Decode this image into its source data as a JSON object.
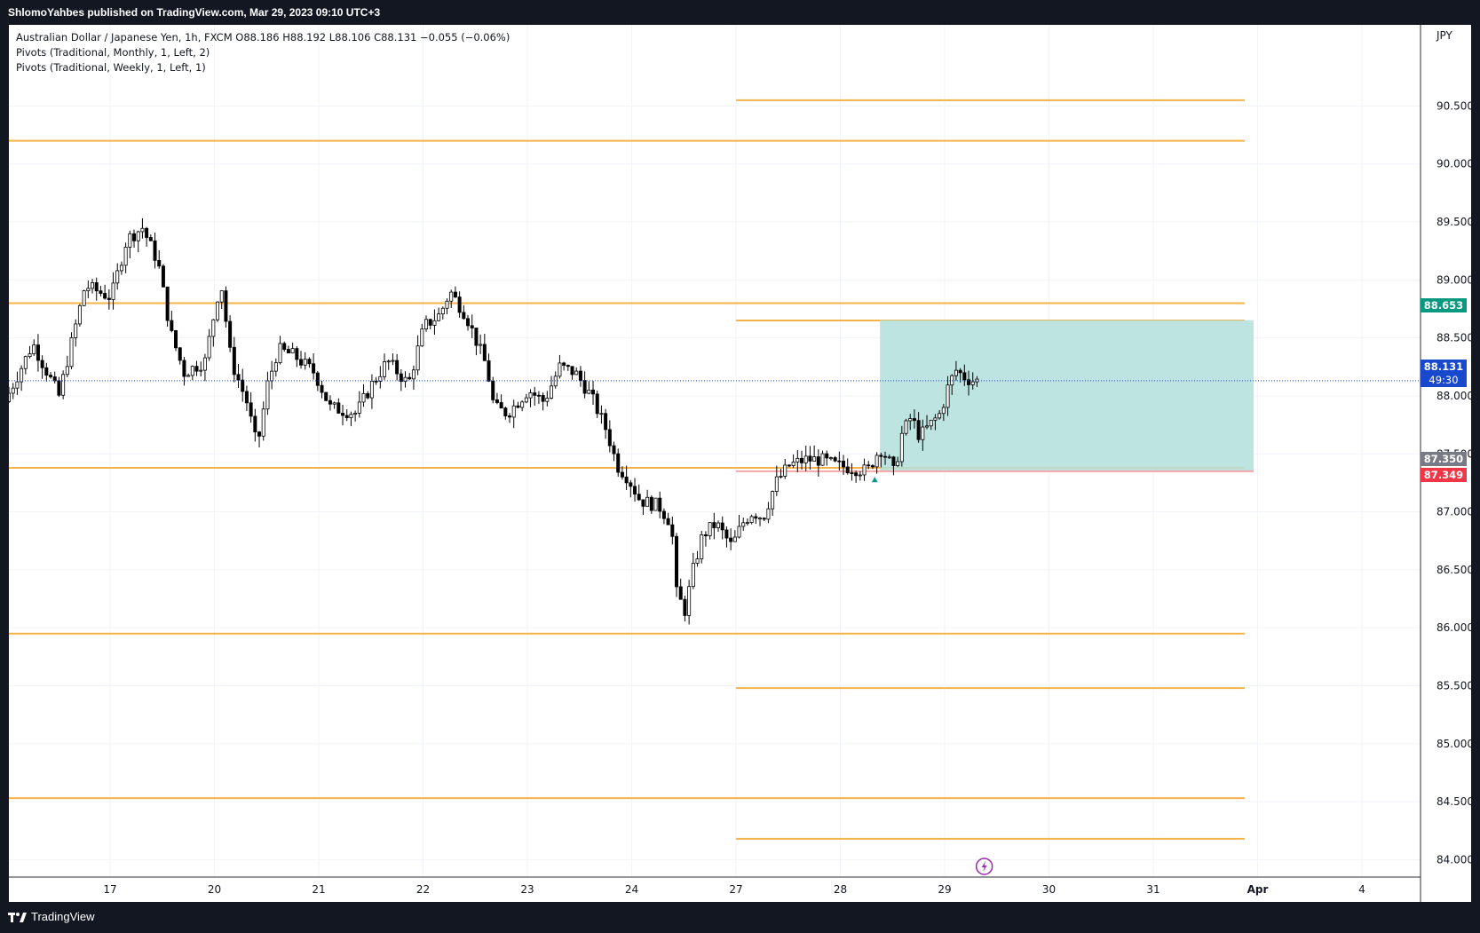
{
  "header": {
    "published": "ShlomoYahbes published on TradingView.com, Mar 29, 2023 09:10 UTC+3"
  },
  "legend": {
    "symbol_line": "Australian Dollar / Japanese Yen, 1h, FXCM  O88.186  H88.192  L88.106  C88.131  −0.055 (−0.06%)",
    "pivots_monthly": "Pivots (Traditional, Monthly, 1, Left, 2)",
    "pivots_weekly": "Pivots (Traditional, Weekly, 1, Left, 1)"
  },
  "axis": {
    "currency": "JPY"
  },
  "price_tags": {
    "target": "88.653",
    "last": "88.131",
    "countdown": "49:30",
    "entry": "87.350",
    "stop": "87.349"
  },
  "footer": {
    "brand": "TradingView"
  },
  "colors": {
    "pivot_line": "#f7b347",
    "long_zone": "#b2dfdb",
    "target_tag": "#089981",
    "last_price_tag": "#1848cc",
    "stop_tag": "#f23645",
    "entry_tag": "#787b86",
    "candle_up": "#ffffff",
    "candle_down": "#000000"
  },
  "chart_data": {
    "type": "candlestick",
    "symbol": "AUDJPY",
    "timeframe": "1h",
    "ylim": [
      83.85,
      91.2
    ],
    "y_ticks": [
      "84.000",
      "84.500",
      "85.000",
      "85.500",
      "86.000",
      "86.500",
      "87.000",
      "87.500",
      "88.000",
      "88.500",
      "89.000",
      "89.500",
      "90.000",
      "90.500"
    ],
    "x_ticks": [
      "17",
      "20",
      "21",
      "22",
      "23",
      "24",
      "27",
      "28",
      "29",
      "30",
      "31",
      "Apr",
      "4"
    ],
    "x_tick_slots": [
      0,
      1,
      2,
      3,
      4,
      5,
      6,
      7,
      8,
      9,
      10,
      11,
      12
    ],
    "monthly_pivots": [
      90.2,
      88.8,
      87.38,
      85.95,
      84.53
    ],
    "weekly_pivots": [
      90.55,
      88.65,
      87.38,
      85.48,
      84.18
    ],
    "position": {
      "type": "long",
      "entry": 87.35,
      "target": 88.653,
      "stop": 87.349,
      "start_slot": 7.38
    },
    "last_price": 88.131,
    "anchors": [
      [
        -0.97,
        87.95
      ],
      [
        -0.7,
        88.45
      ],
      [
        -0.45,
        88.0
      ],
      [
        -0.2,
        88.95
      ],
      [
        0.05,
        88.85
      ],
      [
        0.2,
        89.35
      ],
      [
        0.35,
        89.45
      ],
      [
        0.5,
        89.15
      ],
      [
        0.62,
        88.55
      ],
      [
        0.75,
        88.2
      ],
      [
        0.95,
        88.3
      ],
      [
        1.1,
        89.0
      ],
      [
        1.2,
        88.3
      ],
      [
        1.35,
        87.95
      ],
      [
        1.45,
        87.55
      ],
      [
        1.55,
        88.1
      ],
      [
        1.65,
        88.4
      ],
      [
        1.8,
        88.35
      ],
      [
        2.0,
        88.2
      ],
      [
        2.15,
        87.9
      ],
      [
        2.4,
        87.85
      ],
      [
        2.55,
        88.1
      ],
      [
        2.7,
        88.3
      ],
      [
        2.9,
        88.1
      ],
      [
        3.05,
        88.6
      ],
      [
        3.2,
        88.7
      ],
      [
        3.3,
        88.9
      ],
      [
        3.45,
        88.7
      ],
      [
        3.65,
        88.25
      ],
      [
        3.72,
        87.9
      ],
      [
        3.85,
        87.85
      ],
      [
        4.05,
        88.05
      ],
      [
        4.2,
        87.95
      ],
      [
        4.35,
        88.25
      ],
      [
        4.5,
        88.2
      ],
      [
        4.65,
        88.0
      ],
      [
        4.8,
        87.7
      ],
      [
        4.9,
        87.4
      ],
      [
        5.0,
        87.3
      ],
      [
        5.12,
        87.1
      ],
      [
        5.3,
        87.05
      ],
      [
        5.42,
        86.9
      ],
      [
        5.47,
        86.3
      ],
      [
        5.55,
        86.15
      ],
      [
        5.63,
        86.5
      ],
      [
        5.72,
        86.8
      ],
      [
        5.85,
        86.9
      ],
      [
        6.0,
        86.7
      ],
      [
        6.1,
        86.9
      ],
      [
        6.2,
        87.0
      ],
      [
        6.3,
        86.95
      ],
      [
        6.42,
        87.25
      ],
      [
        6.55,
        87.4
      ],
      [
        6.7,
        87.45
      ],
      [
        6.85,
        87.45
      ],
      [
        7.0,
        87.4
      ],
      [
        7.15,
        87.38
      ],
      [
        7.3,
        87.35
      ],
      [
        7.42,
        87.55
      ],
      [
        7.5,
        87.45
      ],
      [
        7.56,
        87.32
      ],
      [
        7.62,
        87.65
      ],
      [
        7.72,
        87.82
      ],
      [
        7.8,
        87.65
      ],
      [
        7.9,
        87.75
      ],
      [
        8.0,
        87.85
      ],
      [
        8.08,
        88.1
      ],
      [
        8.15,
        88.22
      ],
      [
        8.25,
        88.15
      ],
      [
        8.32,
        88.13
      ]
    ]
  }
}
